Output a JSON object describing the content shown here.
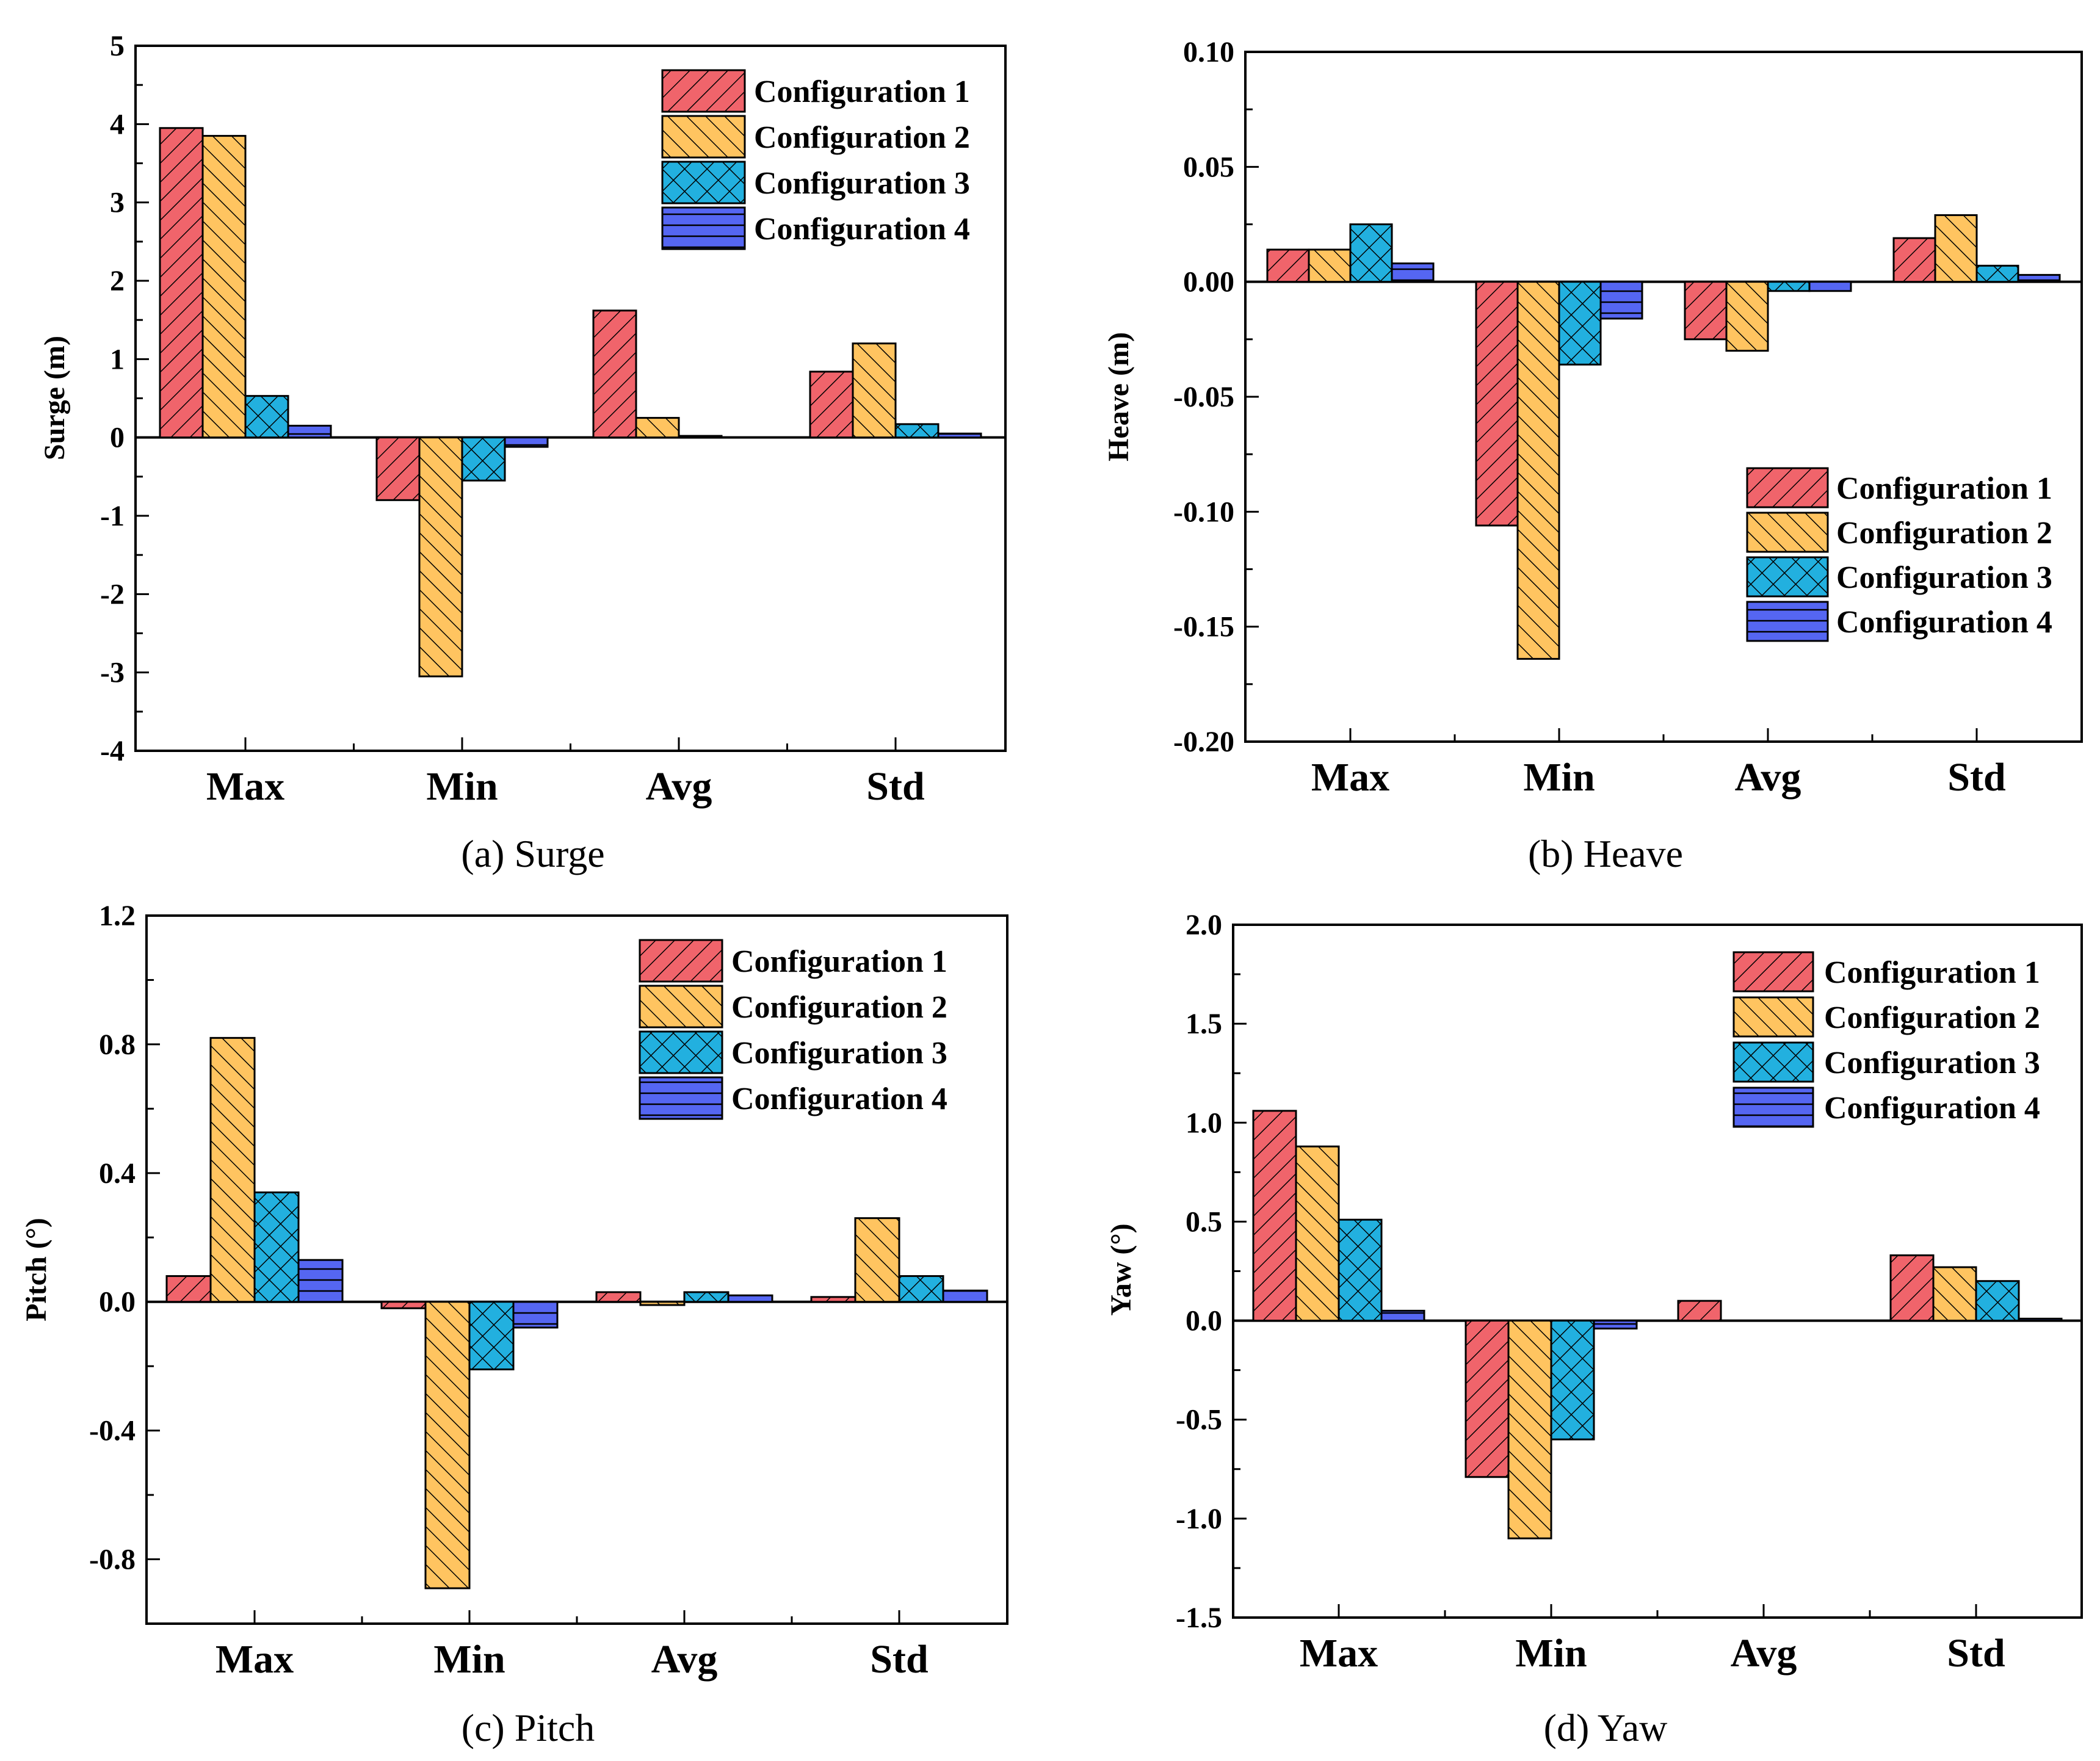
{
  "series_styles": [
    {
      "name": "Configuration 1",
      "color": "#f0646b",
      "pattern": "diag-right"
    },
    {
      "name": "Configuration 2",
      "color": "#ffc460",
      "pattern": "diag-left"
    },
    {
      "name": "Configuration 3",
      "color": "#22b0df",
      "pattern": "crosshatch"
    },
    {
      "name": "Configuration 4",
      "color": "#5566f2",
      "pattern": "horizontal"
    }
  ],
  "chart_data": [
    {
      "id": "surge",
      "type": "bar",
      "caption": "(a) Surge",
      "caption_prefix": "(a)",
      "caption_name": "Surge",
      "ylabel": "Surge (m)",
      "xlabel": "",
      "categories": [
        "Max",
        "Min",
        "Avg",
        "Std"
      ],
      "ylim": [
        -4,
        5
      ],
      "yticks": [
        -4,
        -3,
        -2,
        -1,
        0,
        1,
        2,
        3,
        4,
        5
      ],
      "ytick_labels": [
        "-4",
        "-3",
        "-2",
        "-1",
        "0",
        "1",
        "2",
        "3",
        "4",
        "5"
      ],
      "legend_position": "top-right",
      "series": [
        {
          "name": "Configuration 1",
          "values": [
            3.95,
            -0.8,
            1.62,
            0.84
          ]
        },
        {
          "name": "Configuration 2",
          "values": [
            3.85,
            -3.05,
            0.25,
            1.2
          ]
        },
        {
          "name": "Configuration 3",
          "values": [
            0.53,
            -0.55,
            0.02,
            0.17
          ]
        },
        {
          "name": "Configuration 4",
          "values": [
            0.15,
            -0.12,
            0.0,
            0.05
          ]
        }
      ]
    },
    {
      "id": "heave",
      "type": "bar",
      "caption": "(b) Heave",
      "caption_prefix": "(b)",
      "caption_name": "Heave",
      "ylabel": "Heave (m)",
      "xlabel": "",
      "categories": [
        "Max",
        "Min",
        "Avg",
        "Std"
      ],
      "ylim": [
        -0.2,
        0.1
      ],
      "yticks": [
        -0.2,
        -0.15,
        -0.1,
        -0.05,
        0.0,
        0.05,
        0.1
      ],
      "ytick_labels": [
        "-0.20",
        "-0.15",
        "-0.10",
        "-0.05",
        "0.00",
        "0.05",
        "0.10"
      ],
      "legend_position": "bottom-right",
      "series": [
        {
          "name": "Configuration 1",
          "values": [
            0.014,
            -0.106,
            -0.025,
            0.019
          ]
        },
        {
          "name": "Configuration 2",
          "values": [
            0.014,
            -0.164,
            -0.03,
            0.029
          ]
        },
        {
          "name": "Configuration 3",
          "values": [
            0.025,
            -0.036,
            -0.004,
            0.007
          ]
        },
        {
          "name": "Configuration 4",
          "values": [
            0.008,
            -0.016,
            -0.004,
            0.003
          ]
        }
      ]
    },
    {
      "id": "pitch",
      "type": "bar",
      "caption": "(c) Pitch",
      "caption_prefix": "(c)",
      "caption_name": "Pitch",
      "ylabel": "Pitch (°)",
      "xlabel": "",
      "categories": [
        "Max",
        "Min",
        "Avg",
        "Std"
      ],
      "ylim": [
        -1.0,
        1.2
      ],
      "yticks": [
        -0.8,
        -0.4,
        0.0,
        0.4,
        0.8,
        1.2
      ],
      "ytick_labels": [
        "-0.8",
        "-0.4",
        "0.0",
        "0.4",
        "0.8",
        "1.2"
      ],
      "legend_position": "top-right",
      "series": [
        {
          "name": "Configuration 1",
          "values": [
            0.08,
            -0.02,
            0.03,
            0.015
          ]
        },
        {
          "name": "Configuration 2",
          "values": [
            0.82,
            -0.89,
            -0.01,
            0.26
          ]
        },
        {
          "name": "Configuration 3",
          "values": [
            0.34,
            -0.21,
            0.03,
            0.08
          ]
        },
        {
          "name": "Configuration 4",
          "values": [
            0.13,
            -0.08,
            0.02,
            0.035
          ]
        }
      ]
    },
    {
      "id": "yaw",
      "type": "bar",
      "caption": "(d) Yaw",
      "caption_prefix": "(d)",
      "caption_name": "Yaw",
      "ylabel": "Yaw (°)",
      "xlabel": "",
      "categories": [
        "Max",
        "Min",
        "Avg",
        "Std"
      ],
      "ylim": [
        -1.5,
        2.0
      ],
      "yticks": [
        -1.5,
        -1.0,
        -0.5,
        0.0,
        0.5,
        1.0,
        1.5,
        2.0
      ],
      "ytick_labels": [
        "-1.5",
        "-1.0",
        "-0.5",
        "0.0",
        "0.5",
        "1.0",
        "1.5",
        "2.0"
      ],
      "legend_position": "top-right",
      "series": [
        {
          "name": "Configuration 1",
          "values": [
            1.06,
            -0.79,
            0.1,
            0.33
          ]
        },
        {
          "name": "Configuration 2",
          "values": [
            0.88,
            -1.1,
            0.0,
            0.27
          ]
        },
        {
          "name": "Configuration 3",
          "values": [
            0.51,
            -0.6,
            0.0,
            0.2
          ]
        },
        {
          "name": "Configuration 4",
          "values": [
            0.05,
            -0.04,
            0.0,
            0.01
          ]
        }
      ]
    }
  ]
}
